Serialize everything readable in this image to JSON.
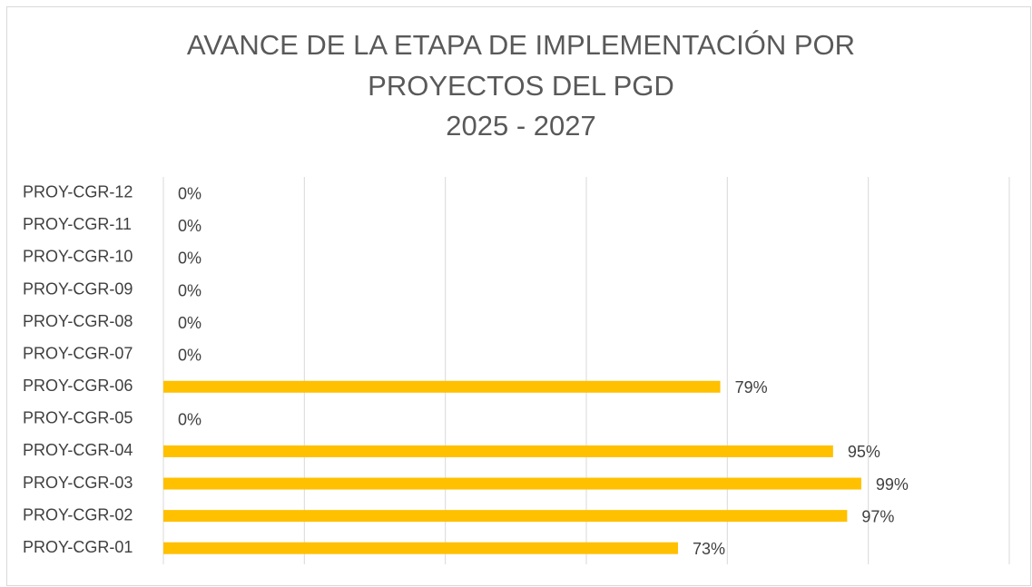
{
  "chart_data": {
    "type": "bar",
    "orientation": "horizontal",
    "title": [
      "AVANCE DE LA ETAPA DE IMPLEMENTACIÓN POR",
      "PROYECTOS DEL PGD",
      "2025 - 2027"
    ],
    "categories": [
      "PROY-CGR-01",
      "PROY-CGR-02",
      "PROY-CGR-03",
      "PROY-CGR-04",
      "PROY-CGR-05",
      "PROY-CGR-06",
      "PROY-CGR-07",
      "PROY-CGR-08",
      "PROY-CGR-09",
      "PROY-CGR-10",
      "PROY-CGR-11",
      "PROY-CGR-12"
    ],
    "values": [
      73,
      97,
      99,
      95,
      0,
      79,
      0,
      0,
      0,
      0,
      0,
      0
    ],
    "value_labels": [
      "73%",
      "97%",
      "99%",
      "95%",
      "0%",
      "79%",
      "0%",
      "0%",
      "0%",
      "0%",
      "0%",
      "0%"
    ],
    "color": "#FFC000",
    "xlim": [
      0,
      120
    ],
    "xticks": [
      0,
      20,
      40,
      60,
      80,
      100,
      120
    ],
    "grid": true
  }
}
